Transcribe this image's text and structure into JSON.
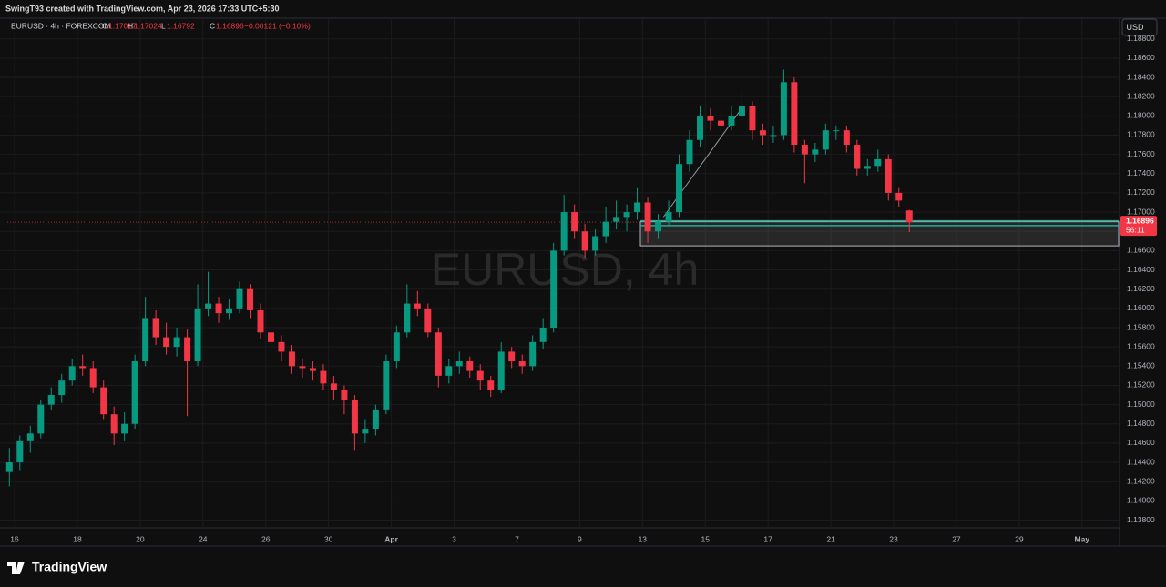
{
  "header": {
    "credit": "SwingT93 created with TradingView.com, Apr 23, 2026 17:33 UTC+5:30",
    "logo": "TradingView"
  },
  "chart_data": {
    "type": "candlestick",
    "symbol": "EURUSD · 4h · FOREXCOM",
    "watermark": "EURUSD, 4h",
    "currency": "USD",
    "legend_labels": [
      "O",
      "H",
      "L",
      "C"
    ],
    "change": "−0.00121 (−0.10%)",
    "countdown": "56:11",
    "up_color": "#089981",
    "down_color": "#f23645",
    "grid": true,
    "open": [
      1.143,
      1.144,
      1.1462,
      1.147,
      1.15,
      1.151,
      1.1525,
      1.154,
      1.1538,
      1.1518,
      1.149,
      1.147,
      1.148,
      1.1545,
      1.159,
      1.157,
      1.156,
      1.157,
      1.1545,
      1.16,
      1.1605,
      1.1595,
      1.16,
      1.162,
      1.1598,
      1.1575,
      1.1565,
      1.1555,
      1.154,
      1.1538,
      1.1535,
      1.1522,
      1.1515,
      1.1505,
      1.147,
      1.1475,
      1.1495,
      1.1545,
      1.1575,
      1.1605,
      1.16,
      1.1575,
      1.153,
      1.154,
      1.1545,
      1.1535,
      1.1525,
      1.1515,
      1.1555,
      1.1545,
      1.154,
      1.1565,
      1.158,
      1.166,
      1.17,
      1.168,
      1.166,
      1.1675,
      1.169,
      1.1695,
      1.17,
      1.171,
      1.168,
      1.169,
      1.17,
      1.175,
      1.1775,
      1.18,
      1.1795,
      1.179,
      1.18,
      1.181,
      1.1785,
      1.178,
      1.178,
      1.1835,
      1.177,
      1.176,
      1.1765,
      1.1785,
      1.1785,
      1.177,
      1.1745,
      1.1748,
      1.1755,
      1.172,
      1.17017
    ],
    "high": [
      1.1455,
      1.1468,
      1.1478,
      1.1505,
      1.1518,
      1.1532,
      1.1548,
      1.1552,
      1.1545,
      1.1525,
      1.1498,
      1.1492,
      1.1552,
      1.1612,
      1.1598,
      1.1585,
      1.158,
      1.1578,
      1.1625,
      1.1638,
      1.1612,
      1.161,
      1.1628,
      1.1625,
      1.1605,
      1.1582,
      1.1572,
      1.1562,
      1.1548,
      1.1545,
      1.1542,
      1.153,
      1.152,
      1.151,
      1.1485,
      1.15,
      1.1552,
      1.1582,
      1.1625,
      1.1618,
      1.1605,
      1.158,
      1.1548,
      1.1555,
      1.155,
      1.1542,
      1.153,
      1.1565,
      1.156,
      1.1552,
      1.1572,
      1.159,
      1.1668,
      1.1718,
      1.1708,
      1.1688,
      1.1682,
      1.1705,
      1.1712,
      1.1708,
      1.1725,
      1.1715,
      1.1698,
      1.1712,
      1.176,
      1.1785,
      1.181,
      1.1808,
      1.1802,
      1.181,
      1.1825,
      1.1815,
      1.1792,
      1.179,
      1.1848,
      1.184,
      1.1775,
      1.1772,
      1.1792,
      1.179,
      1.179,
      1.1775,
      1.1755,
      1.1765,
      1.176,
      1.1725,
      1.17024
    ],
    "low": [
      1.1415,
      1.1432,
      1.145,
      1.1465,
      1.1494,
      1.1502,
      1.152,
      1.153,
      1.1512,
      1.1485,
      1.1458,
      1.1462,
      1.1475,
      1.154,
      1.1562,
      1.1552,
      1.155,
      1.1488,
      1.154,
      1.1592,
      1.1585,
      1.1588,
      1.1595,
      1.159,
      1.1568,
      1.1558,
      1.1545,
      1.1532,
      1.1528,
      1.1525,
      1.1515,
      1.1505,
      1.149,
      1.1452,
      1.146,
      1.1468,
      1.149,
      1.1538,
      1.157,
      1.1592,
      1.157,
      1.1518,
      1.1522,
      1.1532,
      1.1528,
      1.1515,
      1.1508,
      1.1512,
      1.1538,
      1.1532,
      1.1535,
      1.1558,
      1.1575,
      1.1655,
      1.1672,
      1.1652,
      1.1655,
      1.1668,
      1.1682,
      1.168,
      1.1692,
      1.1668,
      1.1672,
      1.1685,
      1.1695,
      1.1742,
      1.1768,
      1.1785,
      1.1782,
      1.1785,
      1.1795,
      1.1775,
      1.177,
      1.1772,
      1.1775,
      1.1762,
      1.173,
      1.1752,
      1.176,
      1.1775,
      1.1762,
      1.1738,
      1.1738,
      1.1742,
      1.1712,
      1.1705,
      1.16792
    ],
    "close": [
      1.144,
      1.1462,
      1.147,
      1.15,
      1.151,
      1.1525,
      1.154,
      1.1538,
      1.1518,
      1.149,
      1.147,
      1.148,
      1.1545,
      1.159,
      1.157,
      1.156,
      1.157,
      1.1545,
      1.16,
      1.1605,
      1.1595,
      1.16,
      1.162,
      1.1598,
      1.1575,
      1.1565,
      1.1555,
      1.154,
      1.1538,
      1.1535,
      1.1522,
      1.1515,
      1.1505,
      1.147,
      1.1475,
      1.1495,
      1.1545,
      1.1575,
      1.1605,
      1.16,
      1.1575,
      1.153,
      1.154,
      1.1545,
      1.1535,
      1.1525,
      1.1515,
      1.1555,
      1.1545,
      1.154,
      1.1565,
      1.158,
      1.166,
      1.17,
      1.168,
      1.166,
      1.1675,
      1.169,
      1.1695,
      1.17,
      1.171,
      1.168,
      1.169,
      1.17,
      1.175,
      1.1775,
      1.18,
      1.1795,
      1.179,
      1.18,
      1.181,
      1.1785,
      1.178,
      1.178,
      1.1835,
      1.177,
      1.176,
      1.1765,
      1.1785,
      1.1785,
      1.177,
      1.1745,
      1.1748,
      1.1755,
      1.172,
      1.1712,
      1.16896
    ],
    "xlim": [
      -0.2,
      106
    ],
    "xticks": [
      {
        "value": 0.5,
        "label": "16"
      },
      {
        "value": 6.5,
        "label": "18"
      },
      {
        "value": 12.5,
        "label": "20"
      },
      {
        "value": 18.5,
        "label": "24"
      },
      {
        "value": 24.5,
        "label": "26"
      },
      {
        "value": 30.5,
        "label": "30"
      },
      {
        "value": 36.5,
        "label": "Apr"
      },
      {
        "value": 42.5,
        "label": "3"
      },
      {
        "value": 48.5,
        "label": "7"
      },
      {
        "value": 54.5,
        "label": "9"
      },
      {
        "value": 60.5,
        "label": "13"
      },
      {
        "value": 66.5,
        "label": "15"
      },
      {
        "value": 72.5,
        "label": "17"
      },
      {
        "value": 78.5,
        "label": "21"
      },
      {
        "value": 84.5,
        "label": "23"
      },
      {
        "value": 90.5,
        "label": "27"
      },
      {
        "value": 96.5,
        "label": "29"
      },
      {
        "value": 102.5,
        "label": "May"
      }
    ],
    "ylim": [
      1.1372,
      1.1892
    ],
    "yticks": [
      {
        "value": 1.138,
        "label": "1.13800"
      },
      {
        "value": 1.14,
        "label": "1.14000"
      },
      {
        "value": 1.142,
        "label": "1.14200"
      },
      {
        "value": 1.144,
        "label": "1.14400"
      },
      {
        "value": 1.146,
        "label": "1.14600"
      },
      {
        "value": 1.148,
        "label": "1.14800"
      },
      {
        "value": 1.15,
        "label": "1.15000"
      },
      {
        "value": 1.152,
        "label": "1.15200"
      },
      {
        "value": 1.154,
        "label": "1.15400"
      },
      {
        "value": 1.156,
        "label": "1.15600"
      },
      {
        "value": 1.158,
        "label": "1.15800"
      },
      {
        "value": 1.16,
        "label": "1.16000"
      },
      {
        "value": 1.162,
        "label": "1.16200"
      },
      {
        "value": 1.164,
        "label": "1.16400"
      },
      {
        "value": 1.166,
        "label": "1.16600"
      },
      {
        "value": 1.168,
        "label": "1.16800"
      },
      {
        "value": 1.17,
        "label": "1.17000"
      },
      {
        "value": 1.172,
        "label": "1.17200"
      },
      {
        "value": 1.174,
        "label": "1.17400"
      },
      {
        "value": 1.176,
        "label": "1.17600"
      },
      {
        "value": 1.178,
        "label": "1.17800"
      },
      {
        "value": 1.18,
        "label": "1.18000"
      },
      {
        "value": 1.182,
        "label": "1.18200"
      },
      {
        "value": 1.184,
        "label": "1.18400"
      },
      {
        "value": 1.186,
        "label": "1.18600"
      },
      {
        "value": 1.188,
        "label": "1.18800"
      }
    ],
    "zone": {
      "start": 60.3,
      "low": 1.1665,
      "high": 1.169,
      "color": "#b2b5be"
    },
    "levels": [
      1.1691,
      1.1686
    ],
    "level_color": "#22ab94",
    "trendline": {
      "x": [
        62.5,
        70
      ],
      "y": [
        1.1695,
        1.1808
      ],
      "color": "#9598a1"
    }
  }
}
